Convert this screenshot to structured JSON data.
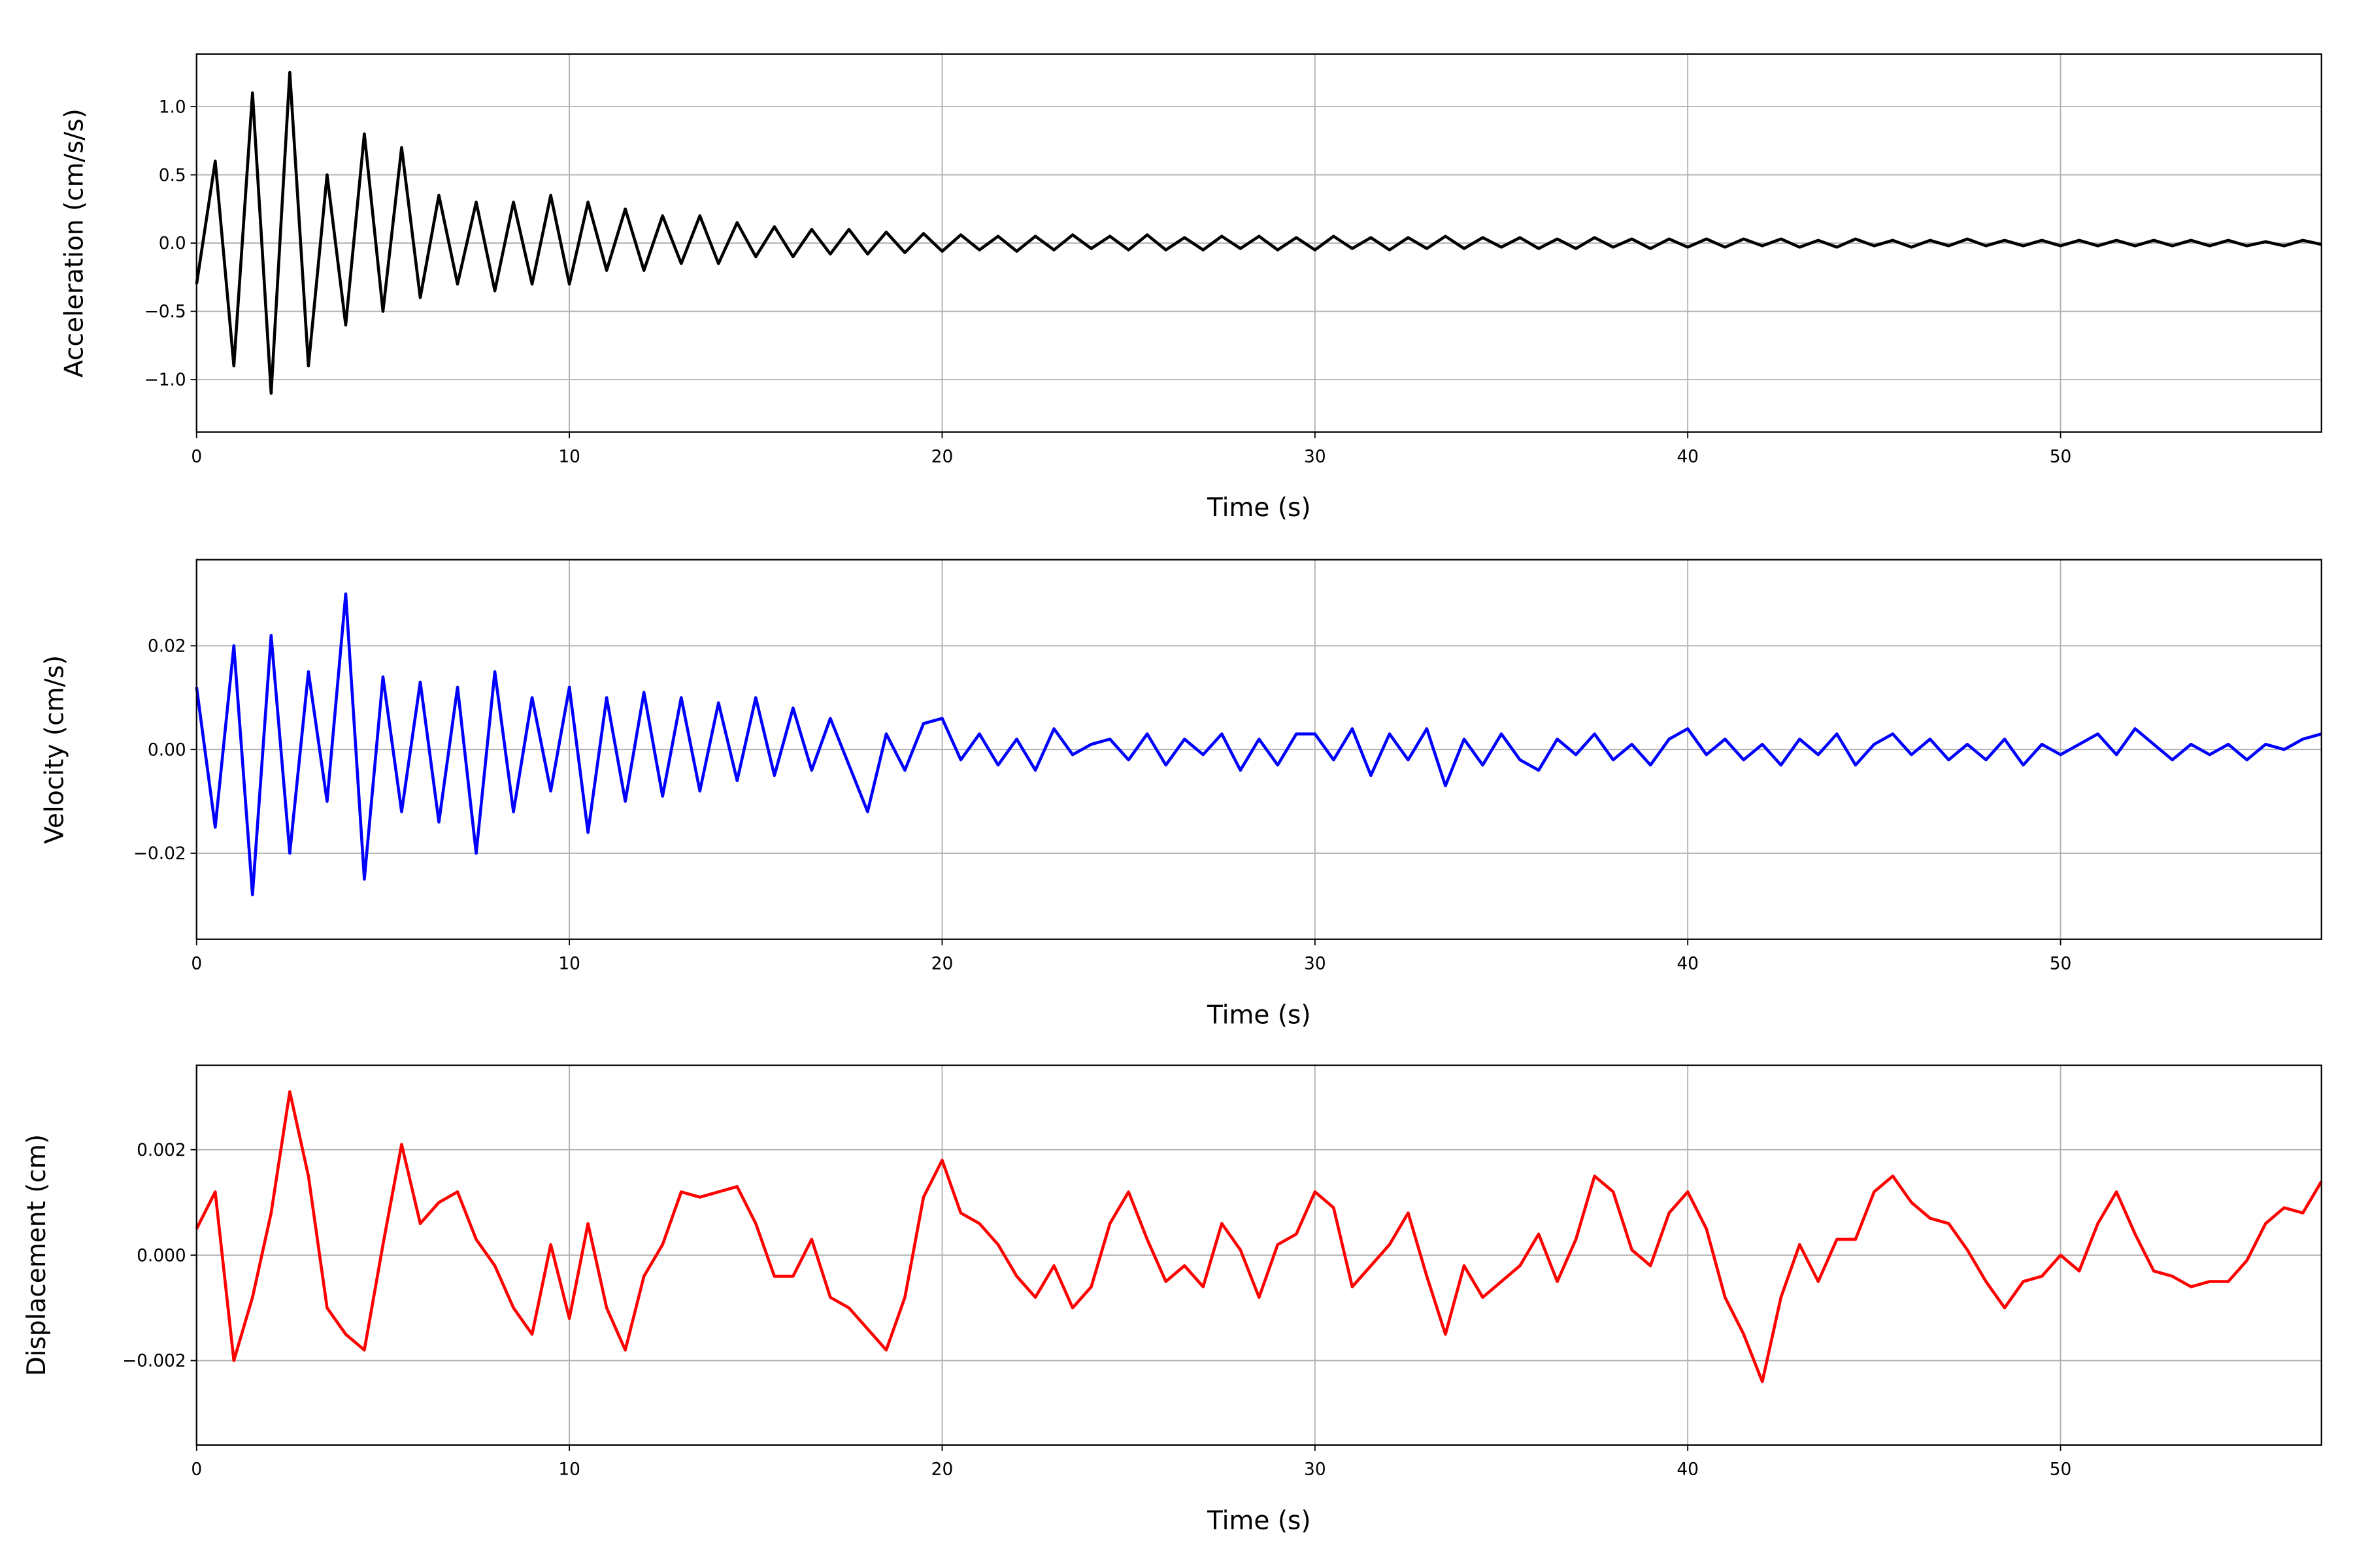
{
  "chart_data": [
    {
      "type": "line",
      "xlabel": "Time (s)",
      "ylabel": "Acceleration (cm/s/s)",
      "xlim": [
        0,
        57
      ],
      "xticks": [
        0,
        10,
        20,
        30,
        40,
        50
      ],
      "ylim": [
        -1.385,
        1.385
      ],
      "yticks": [
        {
          "value": -1.0,
          "label": "−1.0"
        },
        {
          "value": -0.5,
          "label": "−0.5"
        },
        {
          "value": 0.0,
          "label": "0.0"
        },
        {
          "value": 0.5,
          "label": "0.5"
        },
        {
          "value": 1.0,
          "label": "1.0"
        }
      ],
      "grid": true,
      "x": [
        0,
        0.5,
        1,
        1.5,
        2,
        2.5,
        3,
        3.5,
        4,
        4.5,
        5,
        5.5,
        6,
        6.5,
        7,
        7.5,
        8,
        8.5,
        9,
        9.5,
        10,
        10.5,
        11,
        11.5,
        12,
        12.5,
        13,
        13.5,
        14,
        14.5,
        15,
        15.5,
        16,
        16.5,
        17,
        17.5,
        18,
        18.5,
        19,
        19.5,
        20,
        20.5,
        21,
        21.5,
        22,
        22.5,
        23,
        23.5,
        24,
        24.5,
        25,
        25.5,
        26,
        26.5,
        27,
        27.5,
        28,
        28.5,
        29,
        29.5,
        30,
        30.5,
        31,
        31.5,
        32,
        32.5,
        33,
        33.5,
        34,
        34.5,
        35,
        35.5,
        36,
        36.5,
        37,
        37.5,
        38,
        38.5,
        39,
        39.5,
        40,
        40.5,
        41,
        41.5,
        42,
        42.5,
        43,
        43.5,
        44,
        44.5,
        45,
        45.5,
        46,
        46.5,
        47,
        47.5,
        48,
        48.5,
        49,
        49.5,
        50,
        50.5,
        51,
        51.5,
        52,
        52.5,
        53,
        53.5,
        54,
        54.5,
        55,
        55.5,
        56,
        56.5,
        57
      ],
      "series": [
        {
          "color": "#000000",
          "values": [
            -0.3,
            0.6,
            -0.9,
            1.1,
            -1.1,
            1.25,
            -0.9,
            0.5,
            -0.6,
            0.8,
            -0.5,
            0.7,
            -0.4,
            0.35,
            -0.3,
            0.3,
            -0.35,
            0.3,
            -0.3,
            0.35,
            -0.3,
            0.3,
            -0.2,
            0.25,
            -0.2,
            0.2,
            -0.15,
            0.2,
            -0.15,
            0.15,
            -0.1,
            0.12,
            -0.1,
            0.1,
            -0.08,
            0.1,
            -0.08,
            0.08,
            -0.07,
            0.07,
            -0.06,
            0.06,
            -0.05,
            0.05,
            -0.06,
            0.05,
            -0.05,
            0.06,
            -0.04,
            0.05,
            -0.05,
            0.06,
            -0.05,
            0.04,
            -0.05,
            0.05,
            -0.04,
            0.05,
            -0.05,
            0.04,
            -0.05,
            0.05,
            -0.04,
            0.04,
            -0.05,
            0.04,
            -0.04,
            0.05,
            -0.04,
            0.04,
            -0.03,
            0.04,
            -0.04,
            0.03,
            -0.04,
            0.04,
            -0.03,
            0.03,
            -0.04,
            0.03,
            -0.03,
            0.03,
            -0.03,
            0.03,
            -0.02,
            0.03,
            -0.03,
            0.02,
            -0.03,
            0.03,
            -0.02,
            0.02,
            -0.03,
            0.02,
            -0.02,
            0.03,
            -0.02,
            0.02,
            -0.02,
            0.02,
            -0.02,
            0.02,
            -0.02,
            0.02,
            -0.02,
            0.02,
            -0.02,
            0.02,
            -0.02,
            0.02,
            -0.02,
            0.01,
            -0.02,
            0.02,
            -0.01
          ]
        }
      ]
    },
    {
      "type": "line",
      "xlabel": "Time (s)",
      "ylabel": "Velocity (cm/s)",
      "xlim": [
        0,
        57
      ],
      "xticks": [
        0,
        10,
        20,
        30,
        40,
        50
      ],
      "ylim": [
        -0.0366,
        0.0366
      ],
      "yticks": [
        {
          "value": -0.02,
          "label": "−0.02"
        },
        {
          "value": 0.0,
          "label": "0.00"
        },
        {
          "value": 0.02,
          "label": "0.02"
        }
      ],
      "grid": true,
      "x": [
        0,
        0.5,
        1,
        1.5,
        2,
        2.5,
        3,
        3.5,
        4,
        4.5,
        5,
        5.5,
        6,
        6.5,
        7,
        7.5,
        8,
        8.5,
        9,
        9.5,
        10,
        10.5,
        11,
        11.5,
        12,
        12.5,
        13,
        13.5,
        14,
        14.5,
        15,
        15.5,
        16,
        16.5,
        17,
        17.5,
        18,
        18.5,
        19,
        19.5,
        20,
        20.5,
        21,
        21.5,
        22,
        22.5,
        23,
        23.5,
        24,
        24.5,
        25,
        25.5,
        26,
        26.5,
        27,
        27.5,
        28,
        28.5,
        29,
        29.5,
        30,
        30.5,
        31,
        31.5,
        32,
        32.5,
        33,
        33.5,
        34,
        34.5,
        35,
        35.5,
        36,
        36.5,
        37,
        37.5,
        38,
        38.5,
        39,
        39.5,
        40,
        40.5,
        41,
        41.5,
        42,
        42.5,
        43,
        43.5,
        44,
        44.5,
        45,
        45.5,
        46,
        46.5,
        47,
        47.5,
        48,
        48.5,
        49,
        49.5,
        50,
        50.5,
        51,
        51.5,
        52,
        52.5,
        53,
        53.5,
        54,
        54.5,
        55,
        55.5,
        56,
        56.5,
        57
      ],
      "series": [
        {
          "color": "#0000ff",
          "values": [
            0.012,
            -0.015,
            0.02,
            -0.028,
            0.022,
            -0.02,
            0.015,
            -0.01,
            0.03,
            -0.025,
            0.014,
            -0.012,
            0.013,
            -0.014,
            0.012,
            -0.02,
            0.015,
            -0.012,
            0.01,
            -0.008,
            0.012,
            -0.016,
            0.01,
            -0.01,
            0.011,
            -0.009,
            0.01,
            -0.008,
            0.009,
            -0.006,
            0.01,
            -0.005,
            0.008,
            -0.004,
            0.006,
            -0.003,
            -0.012,
            0.003,
            -0.004,
            0.005,
            0.006,
            -0.002,
            0.003,
            -0.003,
            0.002,
            -0.004,
            0.004,
            -0.001,
            0.001,
            0.002,
            -0.002,
            0.003,
            -0.003,
            0.002,
            -0.001,
            0.003,
            -0.004,
            0.002,
            -0.003,
            0.003,
            0.003,
            -0.002,
            0.004,
            -0.005,
            0.003,
            -0.002,
            0.004,
            -0.007,
            0.002,
            -0.003,
            0.003,
            -0.002,
            -0.004,
            0.002,
            -0.001,
            0.003,
            -0.002,
            0.001,
            -0.003,
            0.002,
            0.004,
            -0.001,
            0.002,
            -0.002,
            0.001,
            -0.003,
            0.002,
            -0.001,
            0.003,
            -0.003,
            0.001,
            0.003,
            -0.001,
            0.002,
            -0.002,
            0.001,
            -0.002,
            0.002,
            -0.003,
            0.001,
            -0.001,
            0.001,
            0.003,
            -0.001,
            0.004,
            0.001,
            -0.002,
            0.001,
            -0.001,
            0.001,
            -0.002,
            0.001,
            0.0,
            0.002,
            0.003
          ]
        }
      ]
    },
    {
      "type": "line",
      "xlabel": "Time (s)",
      "ylabel": "Displacement (cm)",
      "xlim": [
        0,
        57
      ],
      "xticks": [
        0,
        10,
        20,
        30,
        40,
        50
      ],
      "ylim": [
        -0.0036,
        0.0036
      ],
      "yticks": [
        {
          "value": -0.002,
          "label": "−0.002"
        },
        {
          "value": 0.0,
          "label": "0.000"
        },
        {
          "value": 0.002,
          "label": "0.002"
        }
      ],
      "grid": true,
      "x": [
        0,
        0.5,
        1,
        1.5,
        2,
        2.5,
        3,
        3.5,
        4,
        4.5,
        5,
        5.5,
        6,
        6.5,
        7,
        7.5,
        8,
        8.5,
        9,
        9.5,
        10,
        10.5,
        11,
        11.5,
        12,
        12.5,
        13,
        13.5,
        14,
        14.5,
        15,
        15.5,
        16,
        16.5,
        17,
        17.5,
        18,
        18.5,
        19,
        19.5,
        20,
        20.5,
        21,
        21.5,
        22,
        22.5,
        23,
        23.5,
        24,
        24.5,
        25,
        25.5,
        26,
        26.5,
        27,
        27.5,
        28,
        28.5,
        29,
        29.5,
        30,
        30.5,
        31,
        31.5,
        32,
        32.5,
        33,
        33.5,
        34,
        34.5,
        35,
        35.5,
        36,
        36.5,
        37,
        37.5,
        38,
        38.5,
        39,
        39.5,
        40,
        40.5,
        41,
        41.5,
        42,
        42.5,
        43,
        43.5,
        44,
        44.5,
        45,
        45.5,
        46,
        46.5,
        47,
        47.5,
        48,
        48.5,
        49,
        49.5,
        50,
        50.5,
        51,
        51.5,
        52,
        52.5,
        53,
        53.5,
        54,
        54.5,
        55,
        55.5,
        56,
        56.5,
        57
      ],
      "series": [
        {
          "color": "#ff0000",
          "values": [
            0.0005,
            0.0012,
            -0.002,
            -0.0008,
            0.0008,
            0.0031,
            0.0015,
            -0.001,
            -0.0015,
            -0.0018,
            0.0002,
            0.0021,
            0.0006,
            0.001,
            0.0012,
            0.0003,
            -0.0002,
            -0.001,
            -0.0015,
            0.0002,
            -0.0012,
            0.0006,
            -0.001,
            -0.0018,
            -0.0004,
            0.0002,
            0.0012,
            0.0011,
            0.0012,
            0.0013,
            0.0006,
            -0.0004,
            -0.0004,
            0.0003,
            -0.0008,
            -0.001,
            -0.0014,
            -0.0018,
            -0.0008,
            0.0011,
            0.0018,
            0.0008,
            0.0006,
            0.0002,
            -0.0004,
            -0.0008,
            -0.0002,
            -0.001,
            -0.0006,
            0.0006,
            0.0012,
            0.0003,
            -0.0005,
            -0.0002,
            -0.0006,
            0.0006,
            0.0001,
            -0.0008,
            0.0002,
            0.0004,
            0.0012,
            0.0009,
            -0.0006,
            -0.0002,
            0.0002,
            0.0008,
            -0.0004,
            -0.0015,
            -0.0002,
            -0.0008,
            -0.0005,
            -0.0002,
            0.0004,
            -0.0005,
            0.0003,
            0.0015,
            0.0012,
            0.0001,
            -0.0002,
            0.0008,
            0.0012,
            0.0005,
            -0.0008,
            -0.0015,
            -0.0024,
            -0.0008,
            0.0002,
            -0.0005,
            0.0003,
            0.0003,
            0.0012,
            0.0015,
            0.001,
            0.0007,
            0.0006,
            0.0001,
            -0.0005,
            -0.001,
            -0.0005,
            -0.0004,
            0.0,
            -0.0003,
            0.0006,
            0.0012,
            0.0004,
            -0.0003,
            -0.0004,
            -0.0006,
            -0.0005,
            -0.0005,
            -0.0001,
            0.0006,
            0.0009,
            0.0008,
            0.0014
          ]
        }
      ]
    }
  ]
}
